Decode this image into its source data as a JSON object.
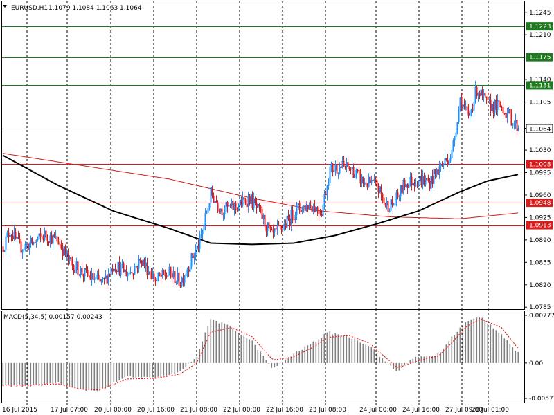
{
  "header": {
    "symbol": "EURUSD,H1",
    "quotes": "1.1079 1.1084 1.1063 1.1064"
  },
  "macd": {
    "label": "MACD(5,34,5) 0.00157 0.00243",
    "ticks": [
      {
        "value": 0.00777,
        "label": "0.00777"
      },
      {
        "value": 0.0,
        "label": "0.00"
      },
      {
        "value": -0.00577,
        "label": "-0.00577"
      }
    ],
    "ylim": [
      -0.00577,
      0.00777
    ]
  },
  "colors": {
    "up": "#1e90ff",
    "down": "#dc1e1e",
    "sma_long": "#c81e1e",
    "sma_short": "#000000",
    "level_green": "#1e7a1e",
    "level_red": "#d71c1c",
    "macd_hist": "#808080",
    "macd_signal": "#ff0000",
    "current_line": "#bebebe"
  },
  "chart_data": {
    "type": "candlestick",
    "symbol": "EURUSD",
    "timeframe": "H1",
    "ylim": [
      1.0782,
      1.1262
    ],
    "price_ticks": [
      "1.1245",
      "1.1210",
      "1.1175",
      "1.1140",
      "1.1105",
      "1.1064",
      "1.1030",
      "1.0995",
      "1.0960",
      "1.0925",
      "1.0890",
      "1.0855",
      "1.0820",
      "1.0785"
    ],
    "x_labels": [
      "16 Jul 2015",
      "17 Jul 07:00",
      "20 Jul 00:00",
      "20 Jul 16:00",
      "21 Jul 08:00",
      "22 Jul 00:00",
      "22 Jul 16:00",
      "23 Jul 08:00",
      "24 Jul 00:00",
      "24 Jul 16:00",
      "27 Jul 09:00",
      "28 Jul 01:00"
    ],
    "levels": [
      {
        "value": 1.1223,
        "label": "1.1223",
        "kind": "resistance"
      },
      {
        "value": 1.1175,
        "label": "1.1175",
        "kind": "resistance"
      },
      {
        "value": 1.1131,
        "label": "1.1131",
        "kind": "resistance"
      },
      {
        "value": 1.1008,
        "label": "1.1008",
        "kind": "support"
      },
      {
        "value": 1.0948,
        "label": "1.0948",
        "kind": "support"
      },
      {
        "value": 1.0913,
        "label": "1.0913",
        "kind": "support"
      }
    ],
    "current_price": {
      "value": 1.1064,
      "label": "1.1064"
    },
    "close_path": [
      [
        0,
        1.088
      ],
      [
        5,
        1.0905
      ],
      [
        12,
        1.0878
      ],
      [
        22,
        1.0885
      ],
      [
        30,
        1.0898
      ],
      [
        40,
        1.0888
      ],
      [
        48,
        1.0855
      ],
      [
        60,
        1.0835
      ],
      [
        72,
        1.0822
      ],
      [
        80,
        1.0852
      ],
      [
        90,
        1.0838
      ],
      [
        100,
        1.0858
      ],
      [
        110,
        1.0828
      ],
      [
        120,
        1.0838
      ],
      [
        128,
        1.0825
      ],
      [
        136,
        1.086
      ],
      [
        142,
        1.0886
      ],
      [
        150,
        1.0962
      ],
      [
        158,
        1.0938
      ],
      [
        168,
        1.0942
      ],
      [
        178,
        1.0955
      ],
      [
        186,
        1.093
      ],
      [
        194,
        1.0895
      ],
      [
        202,
        1.091
      ],
      [
        212,
        1.0938
      ],
      [
        222,
        1.0945
      ],
      [
        230,
        1.0935
      ],
      [
        236,
        1.1
      ],
      [
        244,
        1.1005
      ],
      [
        252,
        1.1
      ],
      [
        260,
        1.098
      ],
      [
        270,
        1.0975
      ],
      [
        276,
        1.0945
      ],
      [
        282,
        1.0945
      ],
      [
        290,
        1.0978
      ],
      [
        300,
        1.0985
      ],
      [
        308,
        1.098
      ],
      [
        316,
        1.1005
      ],
      [
        324,
        1.1025
      ],
      [
        330,
        1.111
      ],
      [
        336,
        1.108
      ],
      [
        342,
        1.1125
      ],
      [
        350,
        1.11
      ],
      [
        360,
        1.1098
      ],
      [
        368,
        1.1076
      ],
      [
        372,
        1.1064
      ]
    ],
    "sma_long": [
      [
        0,
        1.1025
      ],
      [
        60,
        1.1005
      ],
      [
        120,
        1.0985
      ],
      [
        180,
        1.0955
      ],
      [
        230,
        1.0935
      ],
      [
        280,
        1.0926
      ],
      [
        330,
        1.0923
      ],
      [
        372,
        1.0932
      ]
    ],
    "sma_short": [
      [
        0,
        1.1022
      ],
      [
        40,
        1.0975
      ],
      [
        80,
        1.0935
      ],
      [
        120,
        1.0908
      ],
      [
        150,
        1.0885
      ],
      [
        180,
        1.0883
      ],
      [
        210,
        1.0885
      ],
      [
        240,
        1.0897
      ],
      [
        270,
        1.0915
      ],
      [
        300,
        1.0935
      ],
      [
        330,
        1.0965
      ],
      [
        350,
        1.0982
      ],
      [
        372,
        1.0992
      ]
    ],
    "macd_hist": [
      [
        0,
        -0.0037
      ],
      [
        20,
        -0.0038
      ],
      [
        40,
        -0.0033
      ],
      [
        55,
        -0.0044
      ],
      [
        70,
        -0.0045
      ],
      [
        90,
        -0.0022
      ],
      [
        110,
        -0.0025
      ],
      [
        128,
        -0.0015
      ],
      [
        140,
        0.0012
      ],
      [
        150,
        0.0072
      ],
      [
        165,
        0.0058
      ],
      [
        180,
        0.0035
      ],
      [
        195,
        -0.001
      ],
      [
        210,
        0.0015
      ],
      [
        225,
        0.0035
      ],
      [
        235,
        0.005
      ],
      [
        250,
        0.0043
      ],
      [
        265,
        0.0028
      ],
      [
        275,
        0.0005
      ],
      [
        285,
        -0.0015
      ],
      [
        295,
        0.0008
      ],
      [
        305,
        0.001
      ],
      [
        315,
        0.0015
      ],
      [
        325,
        0.0045
      ],
      [
        335,
        0.0068
      ],
      [
        345,
        0.0075
      ],
      [
        360,
        0.0047
      ],
      [
        372,
        0.0016
      ]
    ],
    "macd_signal": [
      [
        0,
        -0.0036
      ],
      [
        20,
        -0.0036
      ],
      [
        40,
        -0.0034
      ],
      [
        55,
        -0.0042
      ],
      [
        70,
        -0.0044
      ],
      [
        90,
        -0.0026
      ],
      [
        110,
        -0.0025
      ],
      [
        128,
        -0.0018
      ],
      [
        140,
        0.0
      ],
      [
        150,
        0.005
      ],
      [
        165,
        0.0058
      ],
      [
        180,
        0.0043
      ],
      [
        195,
        0.0005
      ],
      [
        210,
        0.001
      ],
      [
        225,
        0.0027
      ],
      [
        235,
        0.0042
      ],
      [
        250,
        0.0045
      ],
      [
        265,
        0.0032
      ],
      [
        275,
        0.0012
      ],
      [
        285,
        -0.0008
      ],
      [
        295,
        0.0
      ],
      [
        305,
        0.0007
      ],
      [
        315,
        0.0012
      ],
      [
        325,
        0.0035
      ],
      [
        335,
        0.006
      ],
      [
        345,
        0.0072
      ],
      [
        360,
        0.0058
      ],
      [
        372,
        0.0024
      ]
    ]
  }
}
